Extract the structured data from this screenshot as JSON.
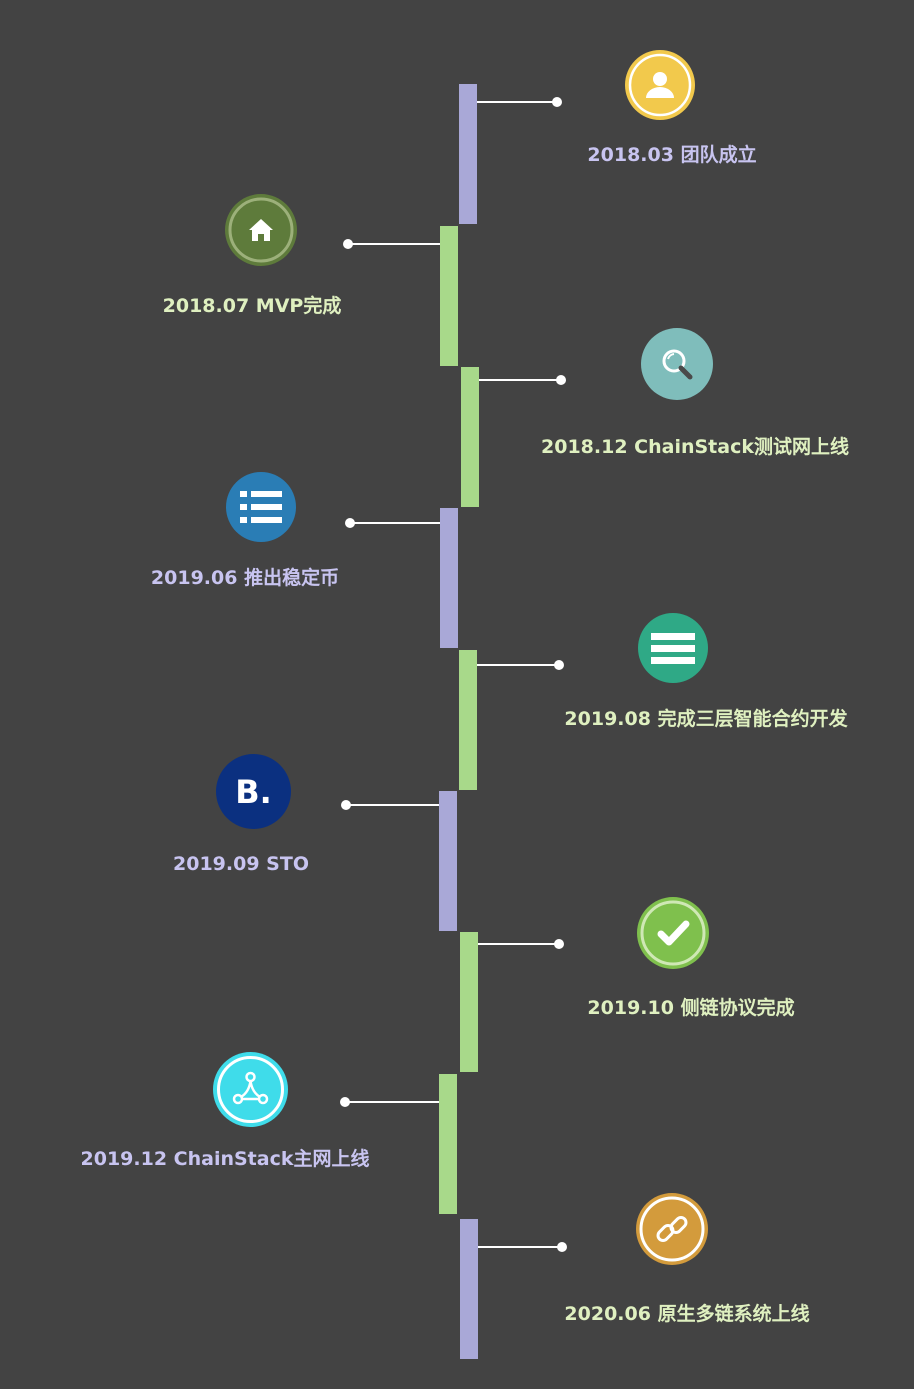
{
  "milestones": [
    {
      "label": "2018.03 团队成立",
      "icon": "user-icon",
      "color": "#f2c94c"
    },
    {
      "label": "2018.07 MVP完成",
      "icon": "home-icon",
      "color": "#5e7b3b"
    },
    {
      "label": "2018.12 ChainStack测试网上线",
      "icon": "search-icon",
      "color": "#7fbdbb"
    },
    {
      "label": "2019.06 推出稳定币",
      "icon": "list-icon",
      "color": "#2a7db5"
    },
    {
      "label": "2019.08 完成三层智能合约开发",
      "icon": "menu-icon",
      "color": "#2fa986"
    },
    {
      "label": "2019.09 STO",
      "icon": "booking-b-icon",
      "color": "#0b3080",
      "glyph": "B."
    },
    {
      "label": "2019.10 侧链协议完成",
      "icon": "check-icon",
      "color": "#7fc04d"
    },
    {
      "label": "2019.12 ChainStack主网上线",
      "icon": "share-nodes-icon",
      "color": "#3fdcea"
    },
    {
      "label": "2020.06 原生多链系统上线",
      "icon": "link-icon",
      "color": "#d39b3c"
    }
  ],
  "colors": {
    "background": "#434343",
    "segment_purple": "#a9a8d7",
    "segment_green": "#a8d98a",
    "label_purple": "#c8c4f0",
    "label_green": "#dff0c0"
  }
}
